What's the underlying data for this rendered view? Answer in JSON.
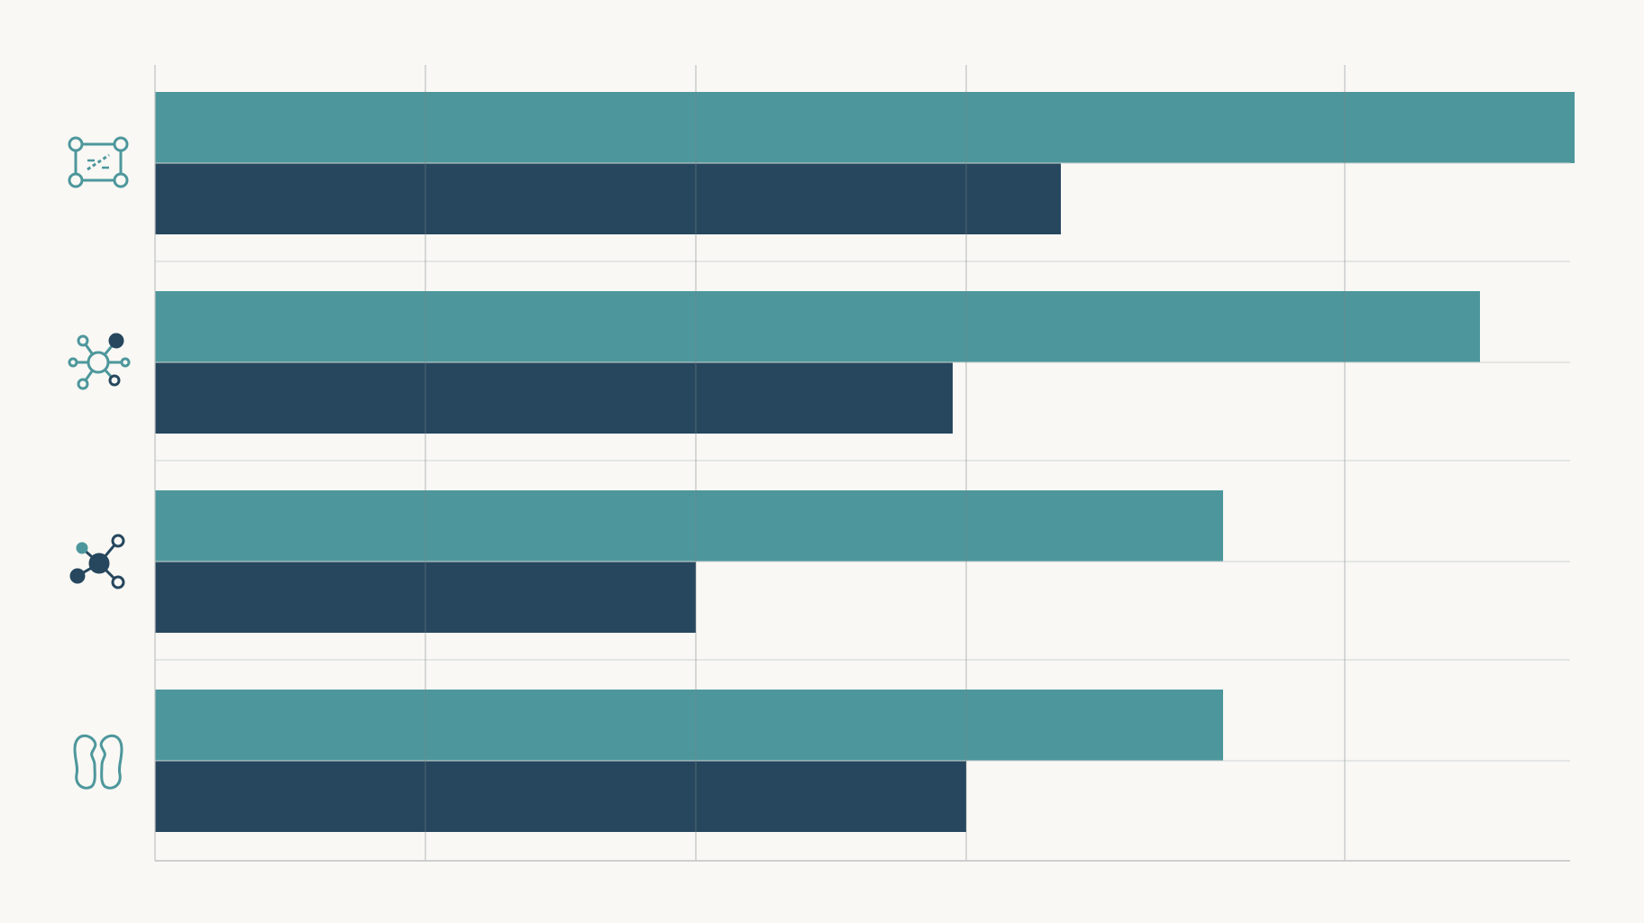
{
  "chart_data": {
    "type": "bar",
    "orientation": "horizontal",
    "title": "",
    "xlabel": "",
    "ylabel": "",
    "xlim": [
      0,
      10
    ],
    "grid": true,
    "legend": "none",
    "categories": [
      "flowchart-icon",
      "hub-network-icon",
      "molecule-icon",
      "kidneys-icon"
    ],
    "series": [
      {
        "color": "#4d979c",
        "values": [
          10.5,
          9.8,
          7.9,
          7.9
        ]
      },
      {
        "color": "#26475e",
        "values": [
          6.7,
          5.9,
          4.0,
          6.0
        ]
      }
    ]
  }
}
